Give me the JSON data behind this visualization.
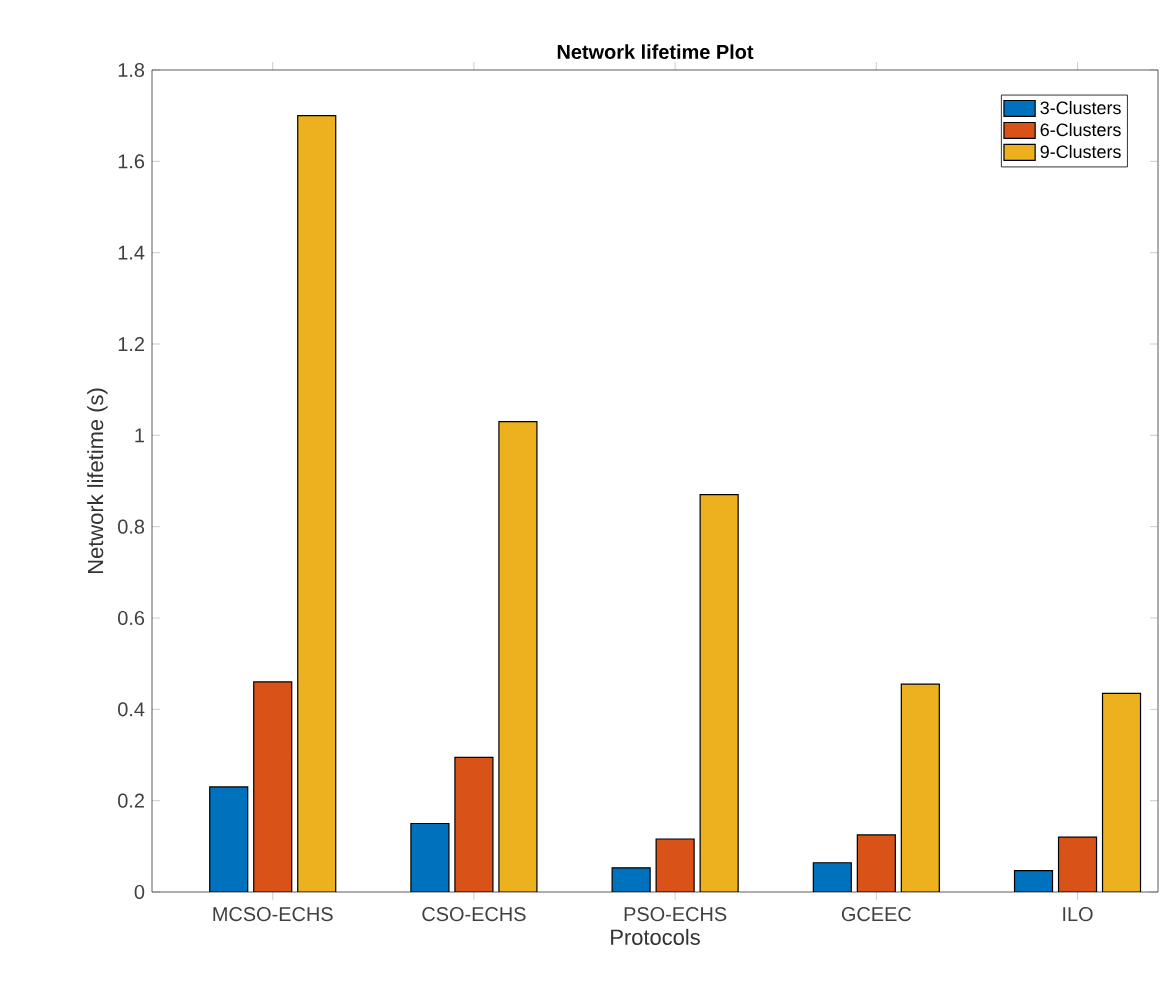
{
  "chart_data": {
    "type": "bar",
    "title": "Network lifetime Plot",
    "xlabel": "Protocols",
    "ylabel": "Network lifetime (s)",
    "categories": [
      "MCSO-ECHS",
      "CSO-ECHS",
      "PSO-ECHS",
      "GCEEC",
      "ILO"
    ],
    "series": [
      {
        "name": "3-Clusters",
        "color": "#0072bd",
        "values": [
          0.23,
          0.15,
          0.053,
          0.064,
          0.047
        ]
      },
      {
        "name": "6-Clusters",
        "color": "#d95319",
        "values": [
          0.46,
          0.295,
          0.116,
          0.125,
          0.12
        ]
      },
      {
        "name": "9-Clusters",
        "color": "#edb120",
        "values": [
          1.7,
          1.03,
          0.87,
          0.455,
          0.435
        ]
      }
    ],
    "ylim": [
      0,
      1.8
    ],
    "yticks": [
      0,
      0.2,
      0.4,
      0.6,
      0.8,
      1,
      1.2,
      1.4,
      1.6,
      1.8
    ],
    "grid": false,
    "legend": "top right"
  }
}
